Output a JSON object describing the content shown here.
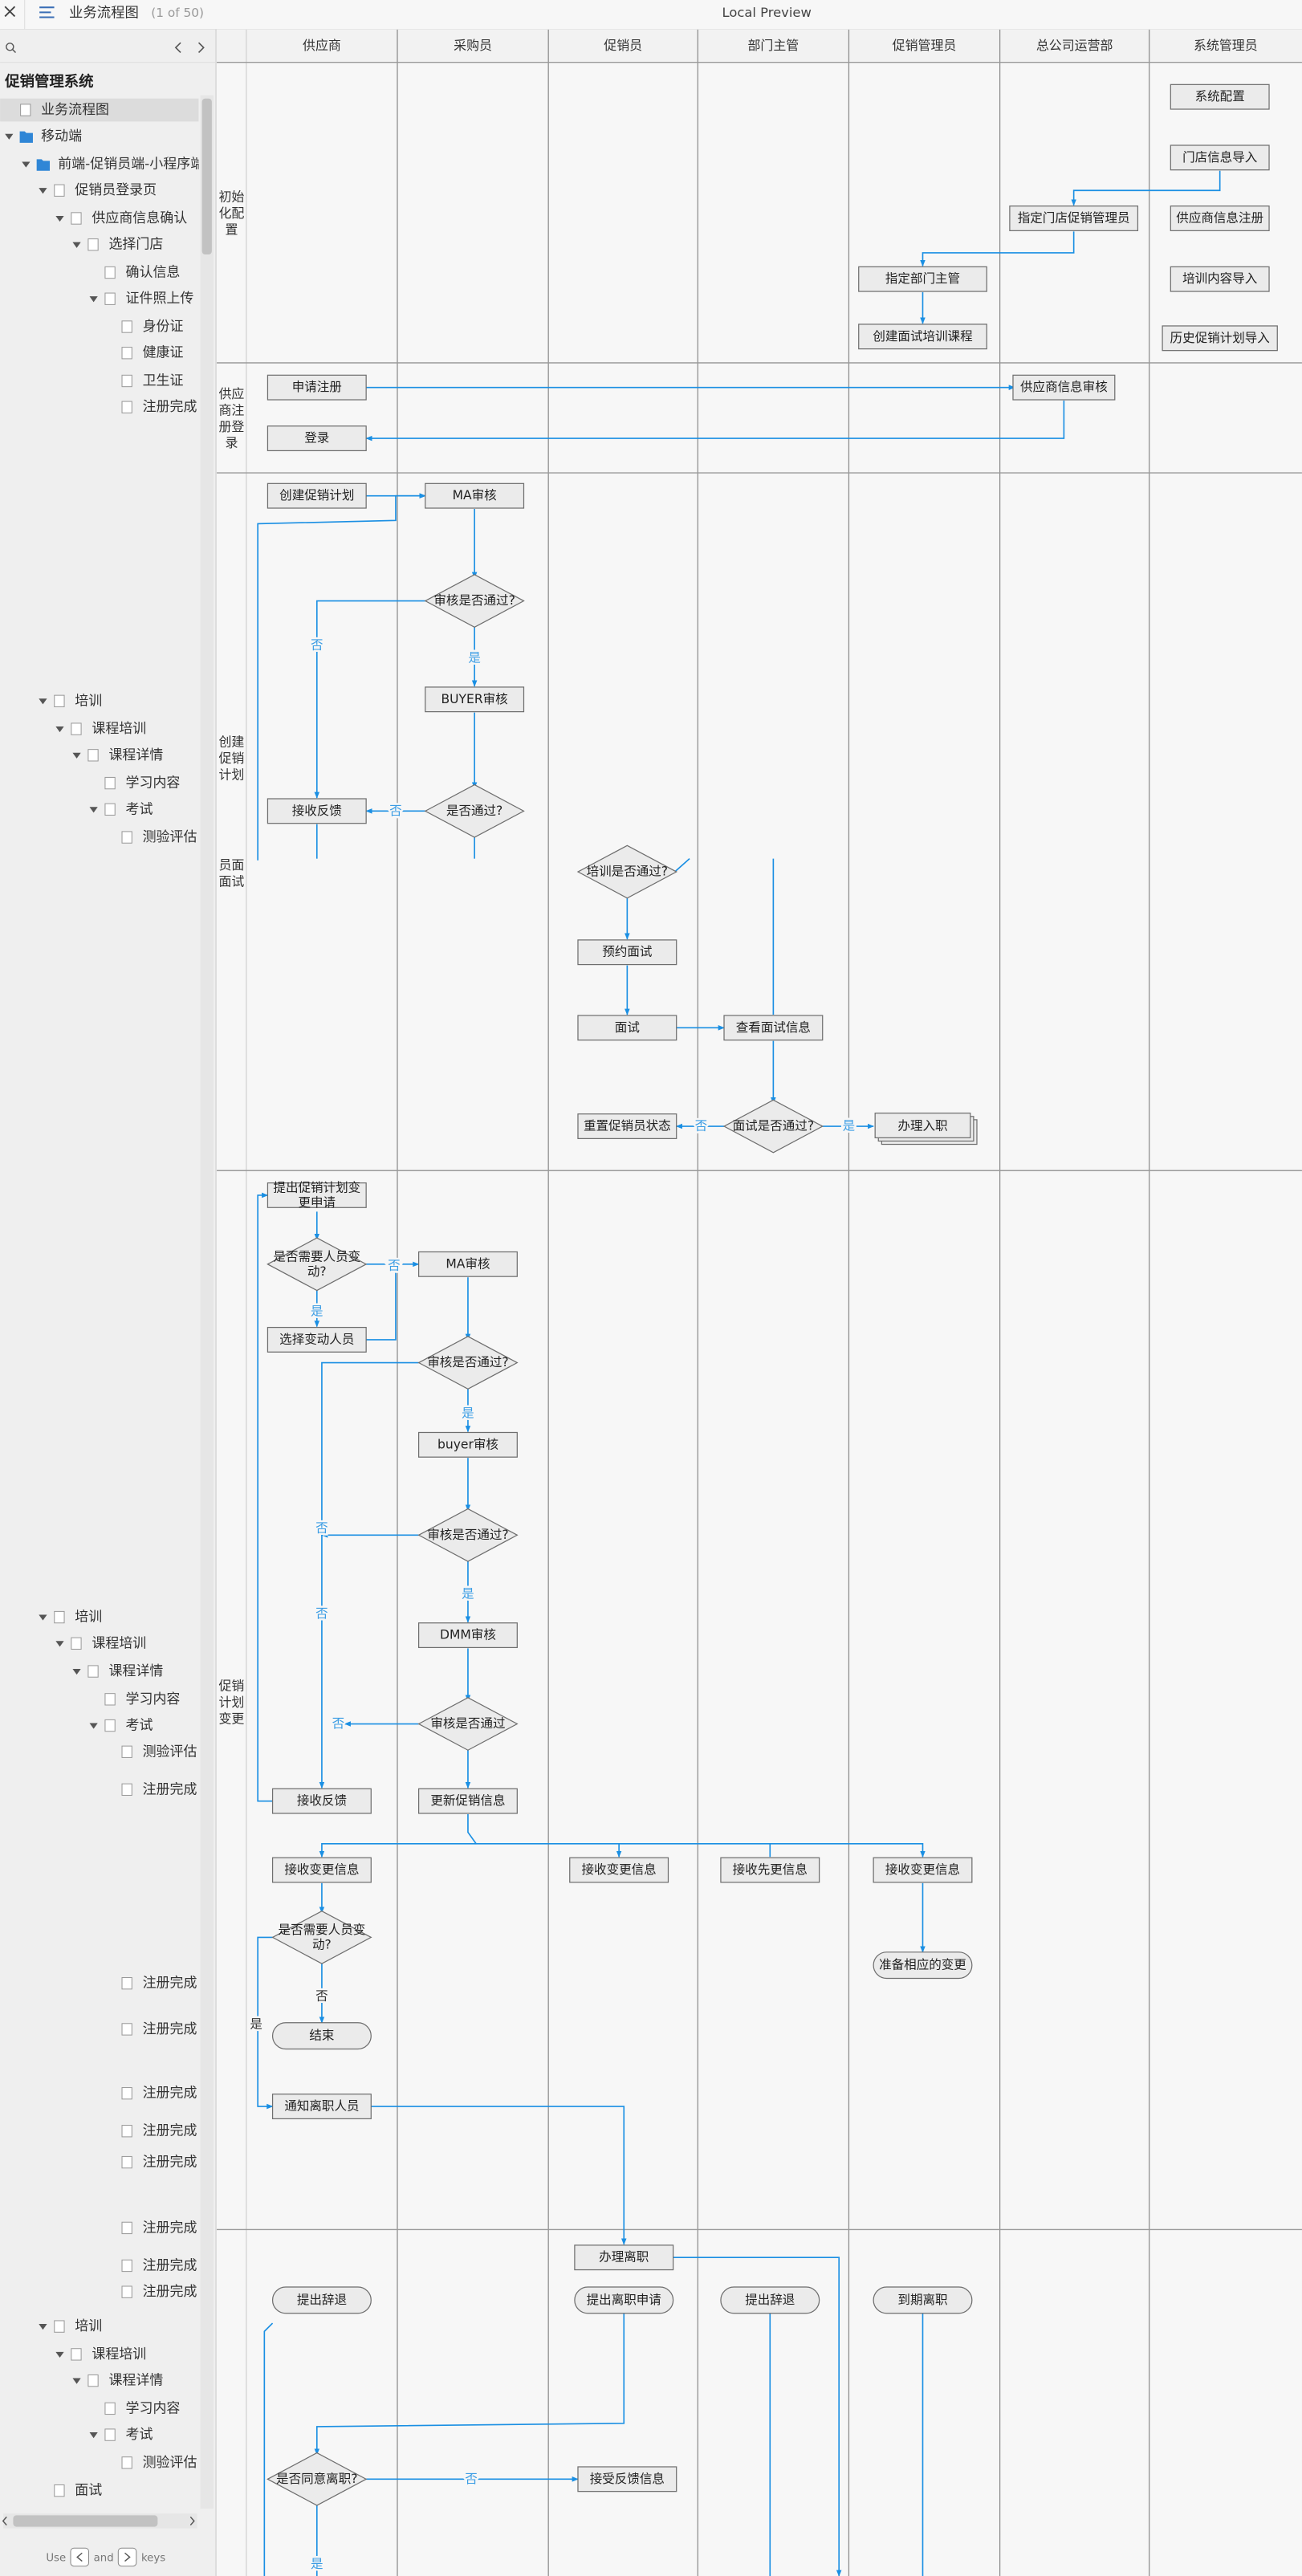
{
  "top_bar": {
    "title": "业务流程图",
    "counter": "(1 of 50)",
    "preview": "Local Preview"
  },
  "sidebar": {
    "title": "促销管理系统",
    "items": [
      "业务流程图",
      "移动端",
      "前端-促销员端-小程序端",
      "促销员登录页",
      "供应商信息确认",
      "选择门店",
      "确认信息",
      "证件照上传",
      "身份证",
      "健康证",
      "卫生证",
      "注册完成",
      "培训",
      "课程培训",
      "课程详情",
      "学习内容",
      "考试",
      "测验评估",
      "培训",
      "课程培训",
      "课程详情",
      "学习内容",
      "考试",
      "测验评估",
      "注册完成",
      "注册完成",
      "注册完成",
      "注册完成",
      "注册完成",
      "注册完成",
      "注册完成",
      "注册完成",
      "注册完成",
      "培训",
      "课程培训",
      "课程详情",
      "学习内容",
      "考试",
      "测验评估",
      "面试"
    ],
    "hint": {
      "use": "Use",
      "and": "and",
      "keys": "keys"
    }
  },
  "diagram": {
    "lanes": [
      "供应商",
      "采购员",
      "促销员",
      "部门主管",
      "促销管理员",
      "总公司运营部",
      "系统管理员"
    ],
    "rows": [
      "初始化配置",
      "供应商注册登录",
      "创建促销计划",
      "员面面试",
      "促销计划变更"
    ],
    "nodes": [
      "系统配置",
      "门店信息导入",
      "指定门店促销管理员",
      "供应商信息注册",
      "指定部门主管",
      "培训内容导入",
      "创建面试培训课程",
      "历史促销计划导入",
      "申请注册",
      "供应商信息审核",
      "登录",
      "创建促销计划",
      "MA审核",
      "审核是否通过?",
      "BUYER审核",
      "是否通过?",
      "接收反馈",
      "培训是否通过?",
      "预约面试",
      "面试",
      "查看面试信息",
      "面试是否通过?",
      "重置促销员状态",
      "办理入职",
      "提出促销计划变更申请",
      "是否需要人员变动?",
      "选择变动人员",
      "MA审核",
      "审核是否通过?",
      "buyer审核",
      "审核是否通过?",
      "DMM审核",
      "审核是否通过",
      "接收反馈",
      "更新促销信息",
      "接收变更信息",
      "接收变更信息",
      "接收先更信息",
      "接收变更信息",
      "是否需要人员变动?",
      "准备相应的变更",
      "结束",
      "通知离职人员",
      "办理离职",
      "提出辞退",
      "提出离职申请",
      "提出辞退",
      "到期离职",
      "是否同意离职?",
      "接受反馈信息"
    ],
    "edge_labels": [
      "否",
      "是",
      "否",
      "否",
      "是",
      "否",
      "是",
      "是",
      "否",
      "是",
      "否",
      "否",
      "否",
      "是",
      "否",
      "是"
    ]
  }
}
